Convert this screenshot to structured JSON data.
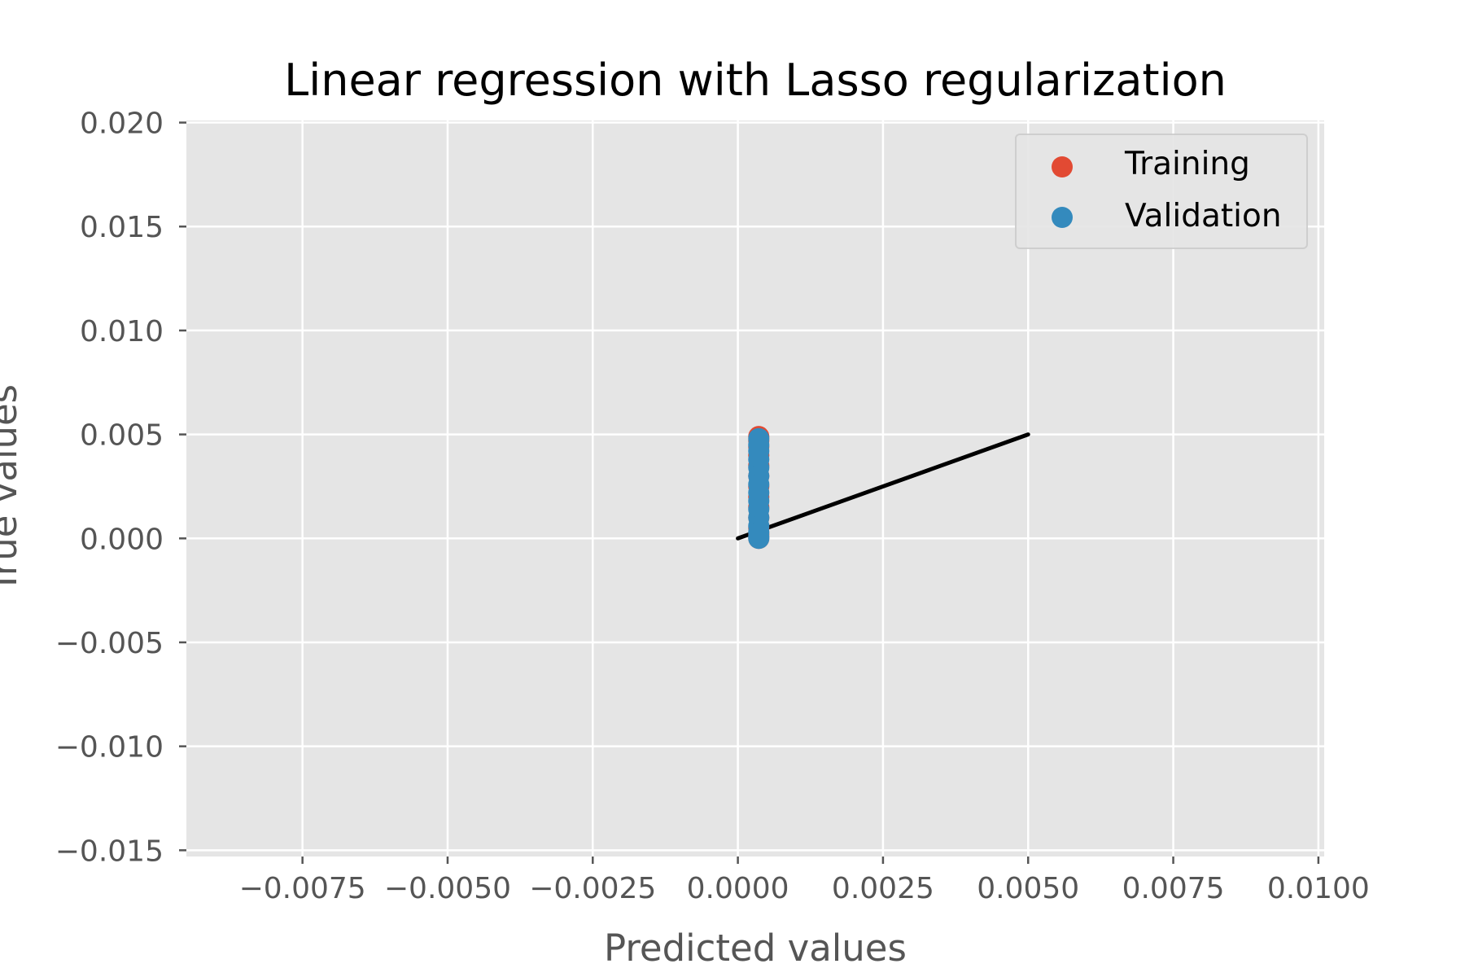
{
  "chart_data": {
    "type": "scatter",
    "title": "Linear regression with Lasso regularization",
    "xlabel": "Predicted values",
    "ylabel": "True values",
    "xlim": [
      -0.0095,
      0.0101
    ],
    "ylim": [
      -0.0153,
      0.0201
    ],
    "xticks": [
      -0.0075,
      -0.005,
      -0.0025,
      0.0,
      0.0025,
      0.005,
      0.0075,
      0.01
    ],
    "xtick_labels": [
      "−0.0075",
      "−0.0050",
      "−0.0025",
      "0.0000",
      "0.0025",
      "0.0050",
      "0.0075",
      "0.0100"
    ],
    "yticks": [
      0.02,
      0.015,
      0.01,
      0.005,
      0.0,
      -0.005,
      -0.01,
      -0.015
    ],
    "ytick_labels": [
      "0.020",
      "0.015",
      "0.010",
      "0.005",
      "0.000",
      "−0.005",
      "−0.010",
      "−0.015"
    ],
    "grid": true,
    "legend_position": "top-right",
    "series": [
      {
        "name": "Training",
        "color": "#E24A33",
        "points": [
          [
            0.00036,
            0.0049
          ],
          [
            0.00036,
            0.0047
          ],
          [
            0.00036,
            0.0044
          ],
          [
            0.00036,
            0.004
          ],
          [
            0.00036,
            0.0035
          ],
          [
            0.00036,
            0.003
          ],
          [
            0.00036,
            0.0025
          ],
          [
            0.00036,
            0.002
          ],
          [
            0.00036,
            0.0015
          ],
          [
            0.00036,
            0.001
          ],
          [
            0.00036,
            0.0005
          ],
          [
            0.00036,
            0.0002
          ],
          [
            0.00036,
            0.0
          ]
        ]
      },
      {
        "name": "Validation",
        "color": "#348ABD",
        "points": [
          [
            0.00036,
            0.0048
          ],
          [
            0.00036,
            0.0045
          ],
          [
            0.00036,
            0.0042
          ],
          [
            0.00036,
            0.0038
          ],
          [
            0.00036,
            0.0034
          ],
          [
            0.00036,
            0.003
          ],
          [
            0.00036,
            0.0026
          ],
          [
            0.00036,
            0.0022
          ],
          [
            0.00036,
            0.0018
          ],
          [
            0.00036,
            0.0014
          ],
          [
            0.00036,
            0.001
          ],
          [
            0.00036,
            0.0006
          ],
          [
            0.00036,
            0.0003
          ],
          [
            0.00036,
            0.0001
          ],
          [
            0.00036,
            0.0
          ]
        ]
      }
    ],
    "reference_line": {
      "color": "#000000",
      "points": [
        [
          0.0,
          0.0
        ],
        [
          0.005,
          0.005
        ]
      ]
    }
  }
}
